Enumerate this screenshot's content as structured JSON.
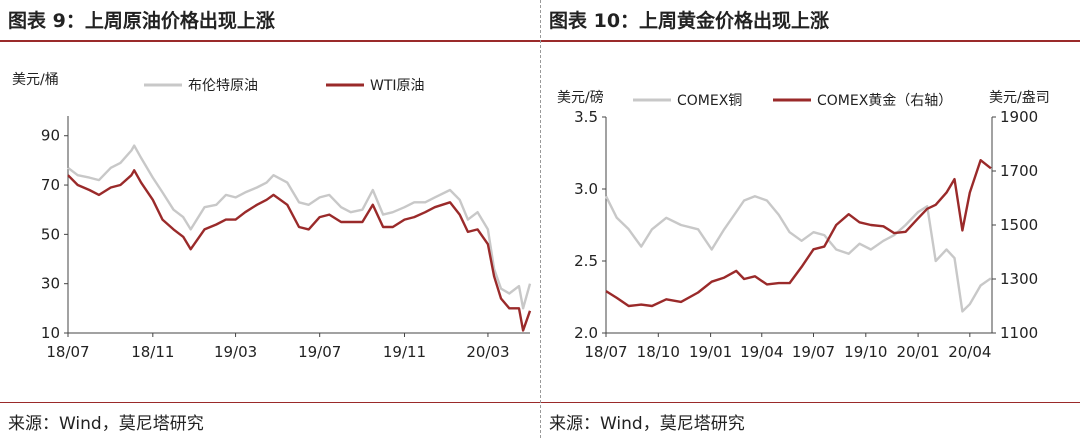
{
  "left": {
    "title": "图表 9：上周原油价格出现上涨",
    "source": "来源：Wind，莫尼塔研究"
  },
  "right": {
    "title": "图表 10：上周黄金价格出现上涨",
    "source": "来源：Wind，莫尼塔研究"
  },
  "chart_data": [
    {
      "type": "line",
      "ylabel": "美元/桶",
      "ylim": [
        10,
        98
      ],
      "y_ticks": [
        10,
        30,
        50,
        70,
        90
      ],
      "x_ticks": [
        "18/07",
        "18/11",
        "19/03",
        "19/07",
        "19/11",
        "20/03"
      ],
      "x_range": [
        "2018-07-01",
        "2020-05-01"
      ],
      "grid": false,
      "legend": "top",
      "series": [
        {
          "name": "布伦特原油",
          "color": "#c8c8c8",
          "x": [
            "2018-07-01",
            "2018-07-15",
            "2018-08-01",
            "2018-08-15",
            "2018-09-01",
            "2018-09-15",
            "2018-10-01",
            "2018-10-05",
            "2018-10-15",
            "2018-11-01",
            "2018-11-15",
            "2018-12-01",
            "2018-12-15",
            "2018-12-26",
            "2019-01-15",
            "2019-02-01",
            "2019-02-15",
            "2019-03-01",
            "2019-03-15",
            "2019-04-01",
            "2019-04-15",
            "2019-04-25",
            "2019-05-15",
            "2019-06-01",
            "2019-06-15",
            "2019-07-01",
            "2019-07-15",
            "2019-08-01",
            "2019-08-15",
            "2019-09-01",
            "2019-09-16",
            "2019-10-01",
            "2019-10-15",
            "2019-11-01",
            "2019-11-15",
            "2019-12-01",
            "2019-12-15",
            "2020-01-06",
            "2020-01-20",
            "2020-02-01",
            "2020-02-15",
            "2020-03-01",
            "2020-03-10",
            "2020-03-20",
            "2020-04-01",
            "2020-04-15",
            "2020-04-21",
            "2020-05-01"
          ],
          "values": [
            77,
            74,
            73,
            72,
            77,
            79,
            84,
            86,
            81,
            73,
            67,
            60,
            57,
            52,
            61,
            62,
            66,
            65,
            67,
            69,
            71,
            74,
            71,
            63,
            62,
            65,
            66,
            61,
            59,
            60,
            68,
            58,
            59,
            61,
            63,
            63,
            65,
            68,
            64,
            56,
            59,
            52,
            36,
            28,
            26,
            29,
            20,
            30
          ]
        },
        {
          "name": "WTI原油",
          "color": "#9a2a2a",
          "x": [
            "2018-07-01",
            "2018-07-15",
            "2018-08-01",
            "2018-08-15",
            "2018-09-01",
            "2018-09-15",
            "2018-10-01",
            "2018-10-05",
            "2018-10-15",
            "2018-11-01",
            "2018-11-15",
            "2018-12-01",
            "2018-12-15",
            "2018-12-26",
            "2019-01-15",
            "2019-02-01",
            "2019-02-15",
            "2019-03-01",
            "2019-03-15",
            "2019-04-01",
            "2019-04-15",
            "2019-04-25",
            "2019-05-15",
            "2019-06-01",
            "2019-06-15",
            "2019-07-01",
            "2019-07-15",
            "2019-08-01",
            "2019-08-15",
            "2019-09-01",
            "2019-09-16",
            "2019-10-01",
            "2019-10-15",
            "2019-11-01",
            "2019-11-15",
            "2019-12-01",
            "2019-12-15",
            "2020-01-06",
            "2020-01-20",
            "2020-02-01",
            "2020-02-15",
            "2020-03-01",
            "2020-03-10",
            "2020-03-20",
            "2020-04-01",
            "2020-04-15",
            "2020-04-21",
            "2020-05-01"
          ],
          "values": [
            74,
            70,
            68,
            66,
            69,
            70,
            74,
            76,
            71,
            64,
            56,
            52,
            49,
            44,
            52,
            54,
            56,
            56,
            59,
            62,
            64,
            66,
            62,
            53,
            52,
            57,
            58,
            55,
            55,
            55,
            62,
            53,
            53,
            56,
            57,
            59,
            61,
            63,
            58,
            51,
            52,
            46,
            33,
            24,
            20,
            20,
            11,
            19
          ]
        }
      ]
    },
    {
      "type": "line",
      "ylabel": "美元/磅",
      "y2label": "美元/盎司",
      "ylim": [
        2.0,
        3.5
      ],
      "y_ticks": [
        2.0,
        2.5,
        3.0,
        3.5
      ],
      "y2lim": [
        1100,
        1900
      ],
      "y2_ticks": [
        1100,
        1300,
        1500,
        1700,
        1900
      ],
      "x_ticks": [
        "18/07",
        "18/10",
        "19/01",
        "19/04",
        "19/07",
        "19/10",
        "20/01",
        "20/04"
      ],
      "x_range": [
        "2018-07-01",
        "2020-05-10"
      ],
      "grid": false,
      "legend": "top",
      "series": [
        {
          "name": "COMEX铜",
          "color": "#c8c8c8",
          "axis": "left",
          "x": [
            "2018-07-01",
            "2018-07-20",
            "2018-08-10",
            "2018-09-01",
            "2018-09-20",
            "2018-10-15",
            "2018-11-10",
            "2018-12-10",
            "2019-01-03",
            "2019-01-25",
            "2019-02-15",
            "2019-03-01",
            "2019-03-20",
            "2019-04-10",
            "2019-05-01",
            "2019-05-20",
            "2019-06-10",
            "2019-07-01",
            "2019-07-20",
            "2019-08-10",
            "2019-09-01",
            "2019-09-20",
            "2019-10-10",
            "2019-11-01",
            "2019-11-20",
            "2019-12-10",
            "2020-01-01",
            "2020-01-17",
            "2020-02-01",
            "2020-02-20",
            "2020-03-05",
            "2020-03-19",
            "2020-04-01",
            "2020-04-20",
            "2020-05-08"
          ],
          "values": [
            2.95,
            2.8,
            2.72,
            2.6,
            2.72,
            2.8,
            2.75,
            2.72,
            2.58,
            2.72,
            2.84,
            2.92,
            2.95,
            2.92,
            2.82,
            2.7,
            2.64,
            2.7,
            2.68,
            2.58,
            2.55,
            2.62,
            2.58,
            2.64,
            2.68,
            2.75,
            2.84,
            2.88,
            2.5,
            2.58,
            2.52,
            2.15,
            2.2,
            2.33,
            2.38
          ]
        },
        {
          "name": "COMEX黄金（右轴）",
          "color": "#9a2a2a",
          "axis": "right",
          "x": [
            "2018-07-01",
            "2018-07-20",
            "2018-08-10",
            "2018-09-01",
            "2018-09-20",
            "2018-10-15",
            "2018-11-10",
            "2018-12-10",
            "2019-01-03",
            "2019-01-25",
            "2019-02-15",
            "2019-03-01",
            "2019-03-20",
            "2019-04-10",
            "2019-05-01",
            "2019-05-20",
            "2019-06-10",
            "2019-07-01",
            "2019-07-20",
            "2019-08-10",
            "2019-09-01",
            "2019-09-20",
            "2019-10-10",
            "2019-11-01",
            "2019-11-20",
            "2019-12-10",
            "2020-01-01",
            "2020-01-17",
            "2020-02-01",
            "2020-02-20",
            "2020-03-05",
            "2020-03-19",
            "2020-04-01",
            "2020-04-20",
            "2020-05-08"
          ],
          "values": [
            1255,
            1230,
            1200,
            1205,
            1200,
            1225,
            1215,
            1250,
            1290,
            1305,
            1330,
            1300,
            1310,
            1280,
            1285,
            1285,
            1345,
            1410,
            1420,
            1500,
            1540,
            1510,
            1500,
            1495,
            1470,
            1475,
            1525,
            1560,
            1575,
            1620,
            1670,
            1480,
            1620,
            1740,
            1710
          ]
        }
      ]
    }
  ]
}
